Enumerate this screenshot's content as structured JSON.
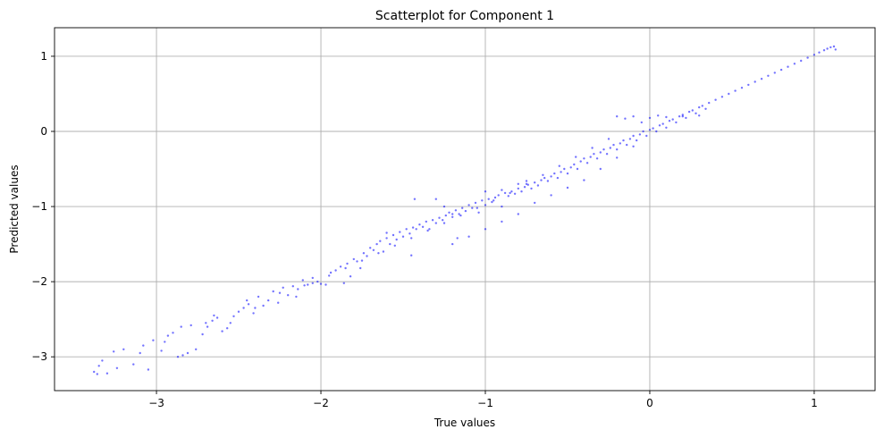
{
  "chart_data": {
    "type": "scatter",
    "title": "Scatterplot for Component 1",
    "xlabel": "True values",
    "ylabel": "Predicted values",
    "xlim": [
      -3.62,
      1.37
    ],
    "ylim": [
      -3.45,
      1.38
    ],
    "xticks": [
      -3,
      -2,
      -1,
      0,
      1
    ],
    "yticks": [
      -3,
      -2,
      -1,
      0,
      1
    ],
    "xtick_labels": [
      "−3",
      "−2",
      "−1",
      "0",
      "1"
    ],
    "ytick_labels": [
      "−3",
      "−2",
      "−1",
      "0",
      "1"
    ],
    "grid": true,
    "marker_color": "#0000ff",
    "marker_opacity": 0.55,
    "series": [
      {
        "points": [
          [
            -3.38,
            -3.2
          ],
          [
            -3.36,
            -3.23
          ],
          [
            -3.35,
            -3.12
          ],
          [
            -3.33,
            -3.05
          ],
          [
            -3.3,
            -3.22
          ],
          [
            -3.26,
            -2.93
          ],
          [
            -3.24,
            -3.15
          ],
          [
            -3.2,
            -2.9
          ],
          [
            -3.14,
            -3.1
          ],
          [
            -3.08,
            -2.85
          ],
          [
            -3.05,
            -3.17
          ],
          [
            -3.02,
            -2.78
          ],
          [
            -2.97,
            -2.92
          ],
          [
            -2.93,
            -2.72
          ],
          [
            -2.9,
            -2.68
          ],
          [
            -2.87,
            -3.0
          ],
          [
            -2.84,
            -2.98
          ],
          [
            -2.81,
            -2.95
          ],
          [
            -2.79,
            -2.58
          ],
          [
            -2.76,
            -2.9
          ],
          [
            -2.72,
            -2.7
          ],
          [
            -2.69,
            -2.6
          ],
          [
            -2.66,
            -2.52
          ],
          [
            -2.63,
            -2.48
          ],
          [
            -2.6,
            -2.66
          ],
          [
            -2.57,
            -2.62
          ],
          [
            -2.55,
            -2.55
          ],
          [
            -2.53,
            -2.46
          ],
          [
            -2.5,
            -2.4
          ],
          [
            -2.47,
            -2.35
          ],
          [
            -2.44,
            -2.3
          ],
          [
            -2.41,
            -2.42
          ],
          [
            -2.38,
            -2.2
          ],
          [
            -2.35,
            -2.32
          ],
          [
            -2.32,
            -2.25
          ],
          [
            -2.29,
            -2.13
          ],
          [
            -2.26,
            -2.28
          ],
          [
            -2.23,
            -2.08
          ],
          [
            -2.2,
            -2.18
          ],
          [
            -2.17,
            -2.06
          ],
          [
            -2.14,
            -2.1
          ],
          [
            -2.11,
            -1.98
          ],
          [
            -2.08,
            -2.04
          ],
          [
            -2.05,
            -1.95
          ],
          [
            -2.02,
            -2.0
          ],
          [
            -2.0,
            -2.03
          ],
          [
            -1.97,
            -2.04
          ],
          [
            -1.94,
            -1.88
          ],
          [
            -1.91,
            -1.85
          ],
          [
            -1.88,
            -1.8
          ],
          [
            -1.86,
            -2.02
          ],
          [
            -1.84,
            -1.76
          ],
          [
            -1.82,
            -1.93
          ],
          [
            -1.8,
            -1.7
          ],
          [
            -1.78,
            -1.73
          ],
          [
            -1.76,
            -1.82
          ],
          [
            -1.74,
            -1.62
          ],
          [
            -1.72,
            -1.66
          ],
          [
            -1.7,
            -1.55
          ],
          [
            -1.68,
            -1.58
          ],
          [
            -1.66,
            -1.5
          ],
          [
            -1.64,
            -1.46
          ],
          [
            -1.62,
            -1.6
          ],
          [
            -1.6,
            -1.42
          ],
          [
            -1.58,
            -1.5
          ],
          [
            -1.56,
            -1.38
          ],
          [
            -1.54,
            -1.44
          ],
          [
            -1.52,
            -1.34
          ],
          [
            -1.5,
            -1.4
          ],
          [
            -1.48,
            -1.3
          ],
          [
            -1.46,
            -1.36
          ],
          [
            -1.45,
            -1.65
          ],
          [
            -1.44,
            -1.28
          ],
          [
            -1.43,
            -0.9
          ],
          [
            -1.42,
            -1.3
          ],
          [
            -1.4,
            -1.24
          ],
          [
            -1.38,
            -1.27
          ],
          [
            -1.36,
            -1.2
          ],
          [
            -1.34,
            -1.3
          ],
          [
            -1.32,
            -1.18
          ],
          [
            -1.3,
            -1.22
          ],
          [
            -1.28,
            -1.15
          ],
          [
            -1.26,
            -1.18
          ],
          [
            -1.24,
            -1.12
          ],
          [
            -1.22,
            -1.08
          ],
          [
            -1.2,
            -1.14
          ],
          [
            -1.18,
            -1.05
          ],
          [
            -1.17,
            -1.42
          ],
          [
            -1.16,
            -1.1
          ],
          [
            -1.14,
            -1.02
          ],
          [
            -1.12,
            -1.06
          ],
          [
            -1.1,
            -0.98
          ],
          [
            -1.08,
            -1.02
          ],
          [
            -1.06,
            -0.95
          ],
          [
            -1.04,
            -1.08
          ],
          [
            -1.02,
            -0.92
          ],
          [
            -1.0,
            -0.98
          ],
          [
            -0.98,
            -0.9
          ],
          [
            -0.96,
            -0.94
          ],
          [
            -0.94,
            -0.88
          ],
          [
            -0.92,
            -0.85
          ],
          [
            -0.9,
            -1.0
          ],
          [
            -0.88,
            -0.82
          ],
          [
            -0.86,
            -0.86
          ],
          [
            -0.84,
            -0.8
          ],
          [
            -0.82,
            -0.83
          ],
          [
            -0.8,
            -0.76
          ],
          [
            -0.78,
            -0.8
          ],
          [
            -0.76,
            -0.74
          ],
          [
            -0.74,
            -0.71
          ],
          [
            -0.72,
            -0.76
          ],
          [
            -0.7,
            -0.68
          ],
          [
            -0.68,
            -0.72
          ],
          [
            -0.66,
            -0.65
          ],
          [
            -0.64,
            -0.62
          ],
          [
            -0.62,
            -0.66
          ],
          [
            -0.6,
            -0.6
          ],
          [
            -0.58,
            -0.56
          ],
          [
            -0.56,
            -0.62
          ],
          [
            -0.54,
            -0.54
          ],
          [
            -0.52,
            -0.5
          ],
          [
            -0.5,
            -0.56
          ],
          [
            -0.48,
            -0.48
          ],
          [
            -0.46,
            -0.44
          ],
          [
            -0.44,
            -0.5
          ],
          [
            -0.42,
            -0.4
          ],
          [
            -0.4,
            -0.36
          ],
          [
            -0.38,
            -0.42
          ],
          [
            -0.36,
            -0.34
          ],
          [
            -0.34,
            -0.3
          ],
          [
            -0.32,
            -0.36
          ],
          [
            -0.3,
            -0.28
          ],
          [
            -0.28,
            -0.24
          ],
          [
            -0.26,
            -0.3
          ],
          [
            -0.24,
            -0.22
          ],
          [
            -0.22,
            -0.18
          ],
          [
            -0.2,
            -0.24
          ],
          [
            -0.18,
            -0.16
          ],
          [
            -0.16,
            -0.12
          ],
          [
            -0.14,
            -0.18
          ],
          [
            -0.12,
            -0.1
          ],
          [
            -0.1,
            -0.06
          ],
          [
            -0.08,
            -0.12
          ],
          [
            -0.06,
            -0.04
          ],
          [
            -0.04,
            0.0
          ],
          [
            -0.02,
            -0.06
          ],
          [
            0.0,
            0.02
          ],
          [
            0.02,
            0.04
          ],
          [
            0.04,
            0.0
          ],
          [
            0.06,
            0.08
          ],
          [
            0.08,
            0.1
          ],
          [
            0.1,
            0.05
          ],
          [
            0.12,
            0.14
          ],
          [
            0.14,
            0.16
          ],
          [
            0.16,
            0.12
          ],
          [
            0.18,
            0.2
          ],
          [
            0.2,
            0.22
          ],
          [
            0.22,
            0.18
          ],
          [
            0.24,
            0.26
          ],
          [
            0.26,
            0.28
          ],
          [
            0.28,
            0.24
          ],
          [
            0.3,
            0.32
          ],
          [
            0.32,
            0.34
          ],
          [
            0.34,
            0.3
          ],
          [
            0.36,
            0.38
          ],
          [
            0.4,
            0.42
          ],
          [
            0.44,
            0.46
          ],
          [
            0.48,
            0.5
          ],
          [
            0.52,
            0.54
          ],
          [
            0.56,
            0.58
          ],
          [
            0.6,
            0.62
          ],
          [
            0.64,
            0.66
          ],
          [
            0.68,
            0.7
          ],
          [
            0.72,
            0.74
          ],
          [
            0.76,
            0.78
          ],
          [
            0.8,
            0.82
          ],
          [
            0.84,
            0.86
          ],
          [
            0.88,
            0.9
          ],
          [
            0.92,
            0.94
          ],
          [
            0.96,
            0.98
          ],
          [
            1.0,
            1.02
          ],
          [
            1.03,
            1.05
          ],
          [
            1.06,
            1.08
          ],
          [
            1.08,
            1.1
          ],
          [
            1.1,
            1.12
          ],
          [
            1.12,
            1.13
          ],
          [
            1.13,
            1.09
          ],
          [
            -0.2,
            0.2
          ],
          [
            -0.1,
            0.2
          ],
          [
            0.0,
            0.18
          ],
          [
            0.1,
            0.19
          ],
          [
            0.2,
            0.2
          ],
          [
            0.3,
            0.21
          ],
          [
            -0.15,
            0.17
          ],
          [
            0.05,
            0.21
          ],
          [
            -0.05,
            0.12
          ],
          [
            -0.25,
            -0.1
          ],
          [
            -0.35,
            -0.22
          ],
          [
            -0.45,
            -0.34
          ],
          [
            -0.55,
            -0.46
          ],
          [
            -0.65,
            -0.58
          ],
          [
            -0.75,
            -0.7
          ],
          [
            -0.85,
            -0.82
          ],
          [
            -0.95,
            -0.92
          ],
          [
            -1.05,
            -1.02
          ],
          [
            -1.15,
            -1.12
          ],
          [
            -1.25,
            -1.22
          ],
          [
            -1.35,
            -1.32
          ],
          [
            -1.45,
            -1.42
          ],
          [
            -1.55,
            -1.52
          ],
          [
            -1.65,
            -1.62
          ],
          [
            -1.75,
            -1.72
          ],
          [
            -1.85,
            -1.82
          ],
          [
            -1.95,
            -1.92
          ],
          [
            -2.05,
            -2.02
          ],
          [
            -1.2,
            -1.5
          ],
          [
            -1.1,
            -1.4
          ],
          [
            -1.0,
            -1.3
          ],
          [
            -0.9,
            -1.2
          ],
          [
            -0.8,
            -1.1
          ],
          [
            -0.7,
            -0.95
          ],
          [
            -0.6,
            -0.85
          ],
          [
            -0.5,
            -0.75
          ],
          [
            -0.4,
            -0.65
          ],
          [
            -0.3,
            -0.5
          ],
          [
            -0.2,
            -0.35
          ],
          [
            -0.1,
            -0.2
          ],
          [
            -1.3,
            -0.9
          ],
          [
            -1.25,
            -1.0
          ],
          [
            -1.2,
            -1.1
          ],
          [
            -2.85,
            -2.6
          ],
          [
            -2.65,
            -2.45
          ],
          [
            -2.45,
            -2.25
          ],
          [
            -2.25,
            -2.15
          ],
          [
            -2.1,
            -2.05
          ],
          [
            -1.6,
            -1.35
          ],
          [
            -1.0,
            -0.8
          ],
          [
            -0.9,
            -0.78
          ],
          [
            -0.8,
            -0.7
          ],
          [
            -0.75,
            -0.66
          ],
          [
            -3.1,
            -2.95
          ],
          [
            -2.95,
            -2.8
          ],
          [
            -2.7,
            -2.55
          ],
          [
            -2.4,
            -2.35
          ],
          [
            -2.15,
            -2.2
          ]
        ]
      }
    ]
  }
}
